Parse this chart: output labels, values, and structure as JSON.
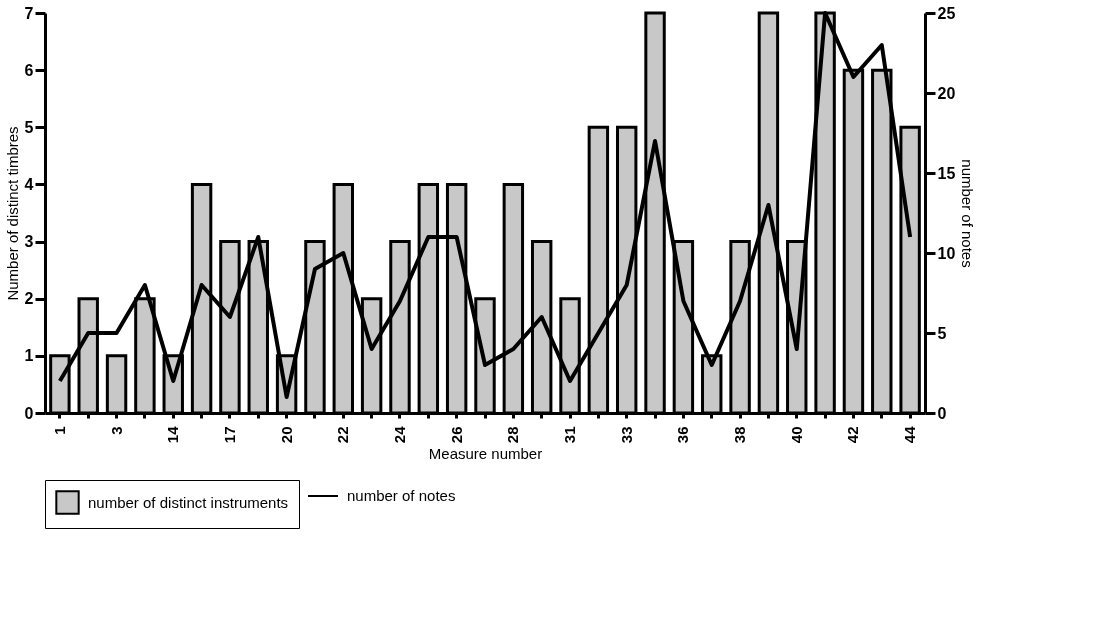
{
  "chart_data": {
    "type": "bar",
    "categories": [
      "1",
      null,
      "3",
      null,
      "14",
      null,
      "17",
      null,
      "20",
      null,
      "22",
      null,
      "24",
      null,
      "26",
      null,
      "28",
      null,
      "31",
      null,
      "33",
      null,
      "36",
      null,
      "38",
      null,
      "40",
      null,
      "42",
      null,
      "44"
    ],
    "series": [
      {
        "name": "number of distinct instruments",
        "color": "#c8c8c8",
        "values": [
          1,
          2,
          1,
          2,
          1,
          4,
          3,
          3,
          1,
          3,
          4,
          2,
          3,
          4,
          4,
          2,
          4,
          3,
          2,
          5,
          5,
          7,
          3,
          1,
          3,
          7,
          3,
          7,
          6,
          6,
          5
        ]
      },
      {
        "name": "number of notes",
        "type": "line",
        "axis": "y2",
        "color": "#000000",
        "values": [
          2,
          5,
          5,
          8,
          2,
          8,
          6,
          11,
          1,
          9,
          10,
          4,
          7,
          11,
          11,
          3,
          4,
          6,
          2,
          5,
          8,
          17,
          7,
          3,
          7,
          13,
          4,
          25,
          21,
          23,
          11
        ]
      }
    ],
    "xlabel": "Measure number",
    "ylabel": "Number of distinct timbres",
    "y2label": "number of notes",
    "ylim": [
      0,
      7
    ],
    "yticks": [
      0,
      1,
      2,
      3,
      4,
      5,
      6,
      7
    ],
    "y2lim": [
      0,
      25
    ],
    "y2ticks": [
      0,
      5,
      10,
      15,
      20,
      25
    ],
    "legend": "bottom",
    "grid": false
  }
}
